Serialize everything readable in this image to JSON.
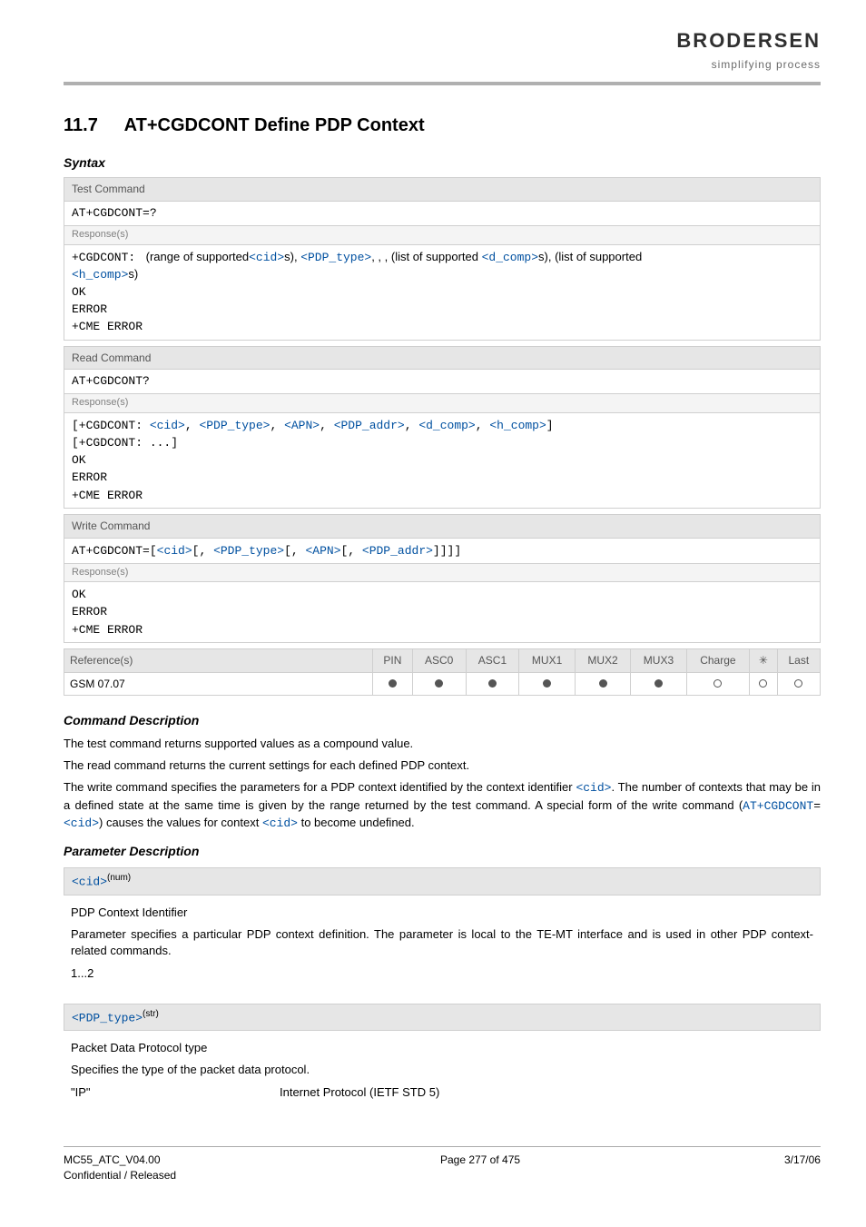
{
  "header": {
    "logo_text": "BRODERSEN",
    "logo_tagline": "simplifying process"
  },
  "section": {
    "number": "11.7",
    "title": "AT+CGDCONT   Define PDP Context"
  },
  "syntax": {
    "heading": "Syntax",
    "test": {
      "label": "Test Command",
      "command": "AT+CGDCONT=?",
      "resp_label": "Response(s)",
      "resp_prefix": "+CGDCONT: ",
      "resp_text1": "(range of supported",
      "resp_text2": "s), ",
      "resp_text3": ", , , (list of supported ",
      "resp_text4": "s), (list of supported ",
      "resp_text5": "s)",
      "resp_ok": "OK",
      "resp_err": "ERROR",
      "resp_cme": "+CME ERROR"
    },
    "read": {
      "label": "Read Command",
      "command": "AT+CGDCONT?",
      "resp_label": "Response(s)",
      "line1_open": "[+CGDCONT: ",
      "line1_close": "]",
      "line2": "[+CGDCONT: ...]",
      "resp_ok": "OK",
      "resp_err": "ERROR",
      "resp_cme": "+CME ERROR"
    },
    "write": {
      "label": "Write Command",
      "cmd_prefix": "AT+CGDCONT=",
      "resp_label": "Response(s)",
      "resp_ok": "OK",
      "resp_err": "ERROR",
      "resp_cme": "+CME ERROR"
    }
  },
  "ref_table": {
    "ref_head": "Reference(s)",
    "cols": [
      "PIN",
      "ASC0",
      "ASC1",
      "MUX1",
      "MUX2",
      "MUX3",
      "Charge",
      "✳",
      "Last"
    ],
    "ref_value": "GSM 07.07",
    "dots": [
      "f",
      "f",
      "f",
      "f",
      "f",
      "f",
      "e",
      "e",
      "e"
    ]
  },
  "cmd_desc": {
    "heading": "Command Description",
    "p1": "The test command returns supported values as a compound value.",
    "p2": "The read command returns the current settings for each defined PDP context.",
    "p3_a": "The write command specifies the parameters for a PDP context identified by the context identifier ",
    "p3_b": ". The number of contexts that may be in a defined state at the same time is given by the range returned by the test command. A special form of the write command (",
    "p3_c": ") causes the values for context ",
    "p3_d": " to become undefined."
  },
  "param_desc": {
    "heading": "Parameter Description",
    "cid": {
      "name": "<cid>",
      "sup": "(num)",
      "title": "PDP Context Identifier",
      "text": "Parameter specifies a particular PDP context definition. The parameter is local to the TE-MT interface and is used in other PDP context-related commands.",
      "range": "1...2"
    },
    "pdp_type": {
      "name": "<PDP_type>",
      "sup": "(str)",
      "title": "Packet Data Protocol type",
      "text": "Specifies the type of the packet data protocol.",
      "key": "\"IP\"",
      "val": "Internet Protocol (IETF STD 5)"
    }
  },
  "params": {
    "cid": "<cid>",
    "pdp_type": "<PDP_type>",
    "apn": "<APN>",
    "pdp_addr": "<PDP_addr>",
    "d_comp": "<d_comp>",
    "h_comp": "<h_comp>"
  },
  "inline": {
    "at_cgdcont_eq": "AT+CGDCONT",
    "eq": "="
  },
  "footer": {
    "left1": "MC55_ATC_V04.00",
    "left2": "Confidential / Released",
    "center": "Page 277 of 475",
    "right": "3/17/06"
  }
}
